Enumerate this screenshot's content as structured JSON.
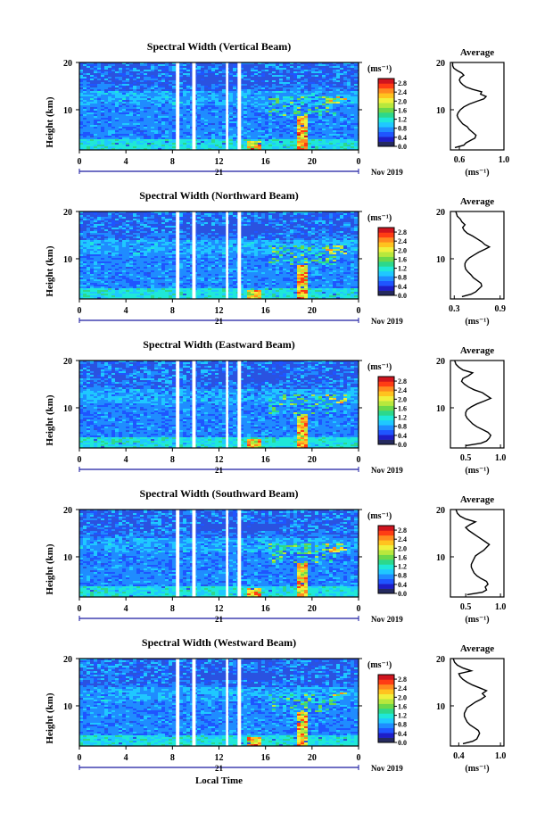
{
  "colors": {
    "scale": [
      "#252a5e",
      "#1e1ec8",
      "#1f55ff",
      "#1f8cff",
      "#1fc8ff",
      "#1fe8d8",
      "#2cd88c",
      "#6cd84a",
      "#b8e83c",
      "#f0f03c",
      "#ffc31f",
      "#ff8a1f",
      "#ff3c14",
      "#d0141e"
    ],
    "frame": "#000000",
    "axis_line": "#1a1aa0"
  },
  "shared": {
    "date_label": "Nov 2019",
    "day_label": "21",
    "xlabel": "Local Time",
    "ylabel": "Height (km)",
    "colorbar_unit": "(ms⁻¹)",
    "avg_title": "Average",
    "avg_xlabel": "(ms⁻¹)"
  },
  "chart_data": [
    {
      "type": "heatmap",
      "title": "Spectral Width (Vertical Beam)",
      "xlabel": "Local Time",
      "ylabel": "Height (km)",
      "x_ticks": [
        "0",
        "4",
        "8",
        "12",
        "16",
        "20",
        "0"
      ],
      "xlim": [
        0,
        24
      ],
      "y_ticks": [
        "20",
        "10"
      ],
      "ylim": [
        1.5,
        20
      ],
      "colorbar": {
        "unit": "(ms⁻¹)",
        "ticks": [
          "2.8",
          "2.4",
          "2.0",
          "1.6",
          "1.2",
          "0.8",
          "0.4",
          "0.0"
        ],
        "range": [
          0.0,
          3.0
        ]
      },
      "gaps_hours": [
        [
          8.3,
          8.6
        ],
        [
          9.7,
          10.0
        ],
        [
          12.6,
          12.8
        ],
        [
          13.6,
          13.9
        ]
      ],
      "average_profile": {
        "title": "Average",
        "xlabel": "(ms⁻¹)",
        "x_ticks": [
          "0.6",
          "1.0"
        ],
        "xlim": [
          0.52,
          1.0
        ],
        "y_ticks": [
          "20",
          "10"
        ],
        "points": [
          [
            0.56,
            2.0
          ],
          [
            0.64,
            2.5
          ],
          [
            0.66,
            3.0
          ],
          [
            0.7,
            3.5
          ],
          [
            0.74,
            4.0
          ],
          [
            0.75,
            4.6
          ],
          [
            0.72,
            5.2
          ],
          [
            0.69,
            5.8
          ],
          [
            0.67,
            6.4
          ],
          [
            0.63,
            7.0
          ],
          [
            0.61,
            7.6
          ],
          [
            0.59,
            8.2
          ],
          [
            0.58,
            8.8
          ],
          [
            0.59,
            9.4
          ],
          [
            0.61,
            10.0
          ],
          [
            0.64,
            10.6
          ],
          [
            0.69,
            11.2
          ],
          [
            0.76,
            11.8
          ],
          [
            0.82,
            12.3
          ],
          [
            0.84,
            12.8
          ],
          [
            0.79,
            13.3
          ],
          [
            0.8,
            13.8
          ],
          [
            0.72,
            14.3
          ],
          [
            0.66,
            14.8
          ],
          [
            0.63,
            15.3
          ],
          [
            0.61,
            15.8
          ],
          [
            0.6,
            16.3
          ],
          [
            0.61,
            16.8
          ],
          [
            0.64,
            17.3
          ],
          [
            0.62,
            17.8
          ],
          [
            0.58,
            18.3
          ],
          [
            0.55,
            18.8
          ],
          [
            0.54,
            19.3
          ],
          [
            0.54,
            20.0
          ]
        ]
      }
    },
    {
      "type": "heatmap",
      "title": "Spectral Width (Northward Beam)",
      "xlabel": "Local Time",
      "ylabel": "Height (km)",
      "x_ticks": [
        "0",
        "4",
        "8",
        "12",
        "16",
        "20",
        "0"
      ],
      "xlim": [
        0,
        24
      ],
      "y_ticks": [
        "20",
        "10"
      ],
      "ylim": [
        1.5,
        20
      ],
      "colorbar": {
        "unit": "(ms⁻¹)",
        "ticks": [
          "2.8",
          "2.4",
          "2.0",
          "1.6",
          "1.2",
          "0.8",
          "0.4",
          "0.0"
        ],
        "range": [
          0.0,
          3.0
        ]
      },
      "gaps_hours": [
        [
          8.3,
          8.6
        ],
        [
          9.7,
          10.0
        ],
        [
          12.6,
          12.8
        ],
        [
          13.6,
          13.9
        ]
      ],
      "average_profile": {
        "title": "Average",
        "xlabel": "(ms⁻¹)",
        "x_ticks": [
          "0.3",
          "0.9"
        ],
        "xlim": [
          0.25,
          0.95
        ],
        "y_ticks": [
          "20",
          "10"
        ],
        "points": [
          [
            0.4,
            2.0
          ],
          [
            0.52,
            2.5
          ],
          [
            0.58,
            3.0
          ],
          [
            0.62,
            3.6
          ],
          [
            0.66,
            4.2
          ],
          [
            0.65,
            4.8
          ],
          [
            0.6,
            5.4
          ],
          [
            0.55,
            6.0
          ],
          [
            0.52,
            6.6
          ],
          [
            0.48,
            7.2
          ],
          [
            0.45,
            7.8
          ],
          [
            0.44,
            8.4
          ],
          [
            0.44,
            9.0
          ],
          [
            0.46,
            9.6
          ],
          [
            0.5,
            10.2
          ],
          [
            0.56,
            10.8
          ],
          [
            0.62,
            11.4
          ],
          [
            0.7,
            12.0
          ],
          [
            0.76,
            12.5
          ],
          [
            0.7,
            13.0
          ],
          [
            0.66,
            13.6
          ],
          [
            0.6,
            14.2
          ],
          [
            0.54,
            14.8
          ],
          [
            0.47,
            15.4
          ],
          [
            0.43,
            16.0
          ],
          [
            0.41,
            16.6
          ],
          [
            0.44,
            17.2
          ],
          [
            0.4,
            17.8
          ],
          [
            0.38,
            18.4
          ],
          [
            0.34,
            19.0
          ],
          [
            0.32,
            20.0
          ]
        ]
      }
    },
    {
      "type": "heatmap",
      "title": "Spectral Width (Eastward Beam)",
      "xlabel": "Local Time",
      "ylabel": "Height (km)",
      "x_ticks": [
        "0",
        "4",
        "8",
        "12",
        "16",
        "20",
        "0"
      ],
      "xlim": [
        0,
        24
      ],
      "y_ticks": [
        "20",
        "10"
      ],
      "ylim": [
        1.5,
        20
      ],
      "colorbar": {
        "unit": "(ms⁻¹)",
        "ticks": [
          "2.8",
          "2.4",
          "2.0",
          "1.6",
          "1.2",
          "0.8",
          "0.4",
          "0.0"
        ],
        "range": [
          0.0,
          3.0
        ]
      },
      "gaps_hours": [
        [
          8.3,
          8.6
        ],
        [
          9.7,
          10.0
        ],
        [
          12.6,
          12.8
        ],
        [
          13.6,
          13.9
        ]
      ],
      "average_profile": {
        "title": "Average",
        "xlabel": "(ms⁻¹)",
        "x_ticks": [
          "0.5",
          "1.0"
        ],
        "xlim": [
          0.28,
          1.05
        ],
        "y_ticks": [
          "20",
          "10"
        ],
        "points": [
          [
            0.5,
            2.0
          ],
          [
            0.72,
            2.5
          ],
          [
            0.8,
            3.0
          ],
          [
            0.84,
            3.6
          ],
          [
            0.86,
            4.2
          ],
          [
            0.82,
            4.8
          ],
          [
            0.74,
            5.4
          ],
          [
            0.66,
            6.0
          ],
          [
            0.6,
            6.6
          ],
          [
            0.56,
            7.2
          ],
          [
            0.52,
            7.8
          ],
          [
            0.5,
            8.4
          ],
          [
            0.5,
            9.0
          ],
          [
            0.52,
            9.6
          ],
          [
            0.58,
            10.2
          ],
          [
            0.66,
            10.8
          ],
          [
            0.76,
            11.4
          ],
          [
            0.86,
            12.0
          ],
          [
            0.8,
            12.6
          ],
          [
            0.74,
            13.2
          ],
          [
            0.62,
            13.8
          ],
          [
            0.54,
            14.4
          ],
          [
            0.48,
            15.0
          ],
          [
            0.44,
            15.6
          ],
          [
            0.46,
            16.2
          ],
          [
            0.54,
            16.8
          ],
          [
            0.6,
            17.4
          ],
          [
            0.46,
            18.0
          ],
          [
            0.4,
            18.6
          ],
          [
            0.36,
            19.2
          ],
          [
            0.34,
            20.0
          ]
        ]
      }
    },
    {
      "type": "heatmap",
      "title": "Spectral Width (Southward Beam)",
      "xlabel": "Local Time",
      "ylabel": "Height (km)",
      "x_ticks": [
        "0",
        "4",
        "8",
        "12",
        "16",
        "20",
        "0"
      ],
      "xlim": [
        0,
        24
      ],
      "y_ticks": [
        "20",
        "10"
      ],
      "ylim": [
        1.5,
        20
      ],
      "colorbar": {
        "unit": "(ms⁻¹)",
        "ticks": [
          "2.8",
          "2.4",
          "2.0",
          "1.6",
          "1.2",
          "0.8",
          "0.4",
          "0.0"
        ],
        "range": [
          0.0,
          3.0
        ]
      },
      "gaps_hours": [
        [
          8.3,
          8.6
        ],
        [
          9.7,
          10.0
        ],
        [
          12.6,
          12.8
        ],
        [
          13.6,
          13.9
        ]
      ],
      "average_profile": {
        "title": "Average",
        "xlabel": "(ms⁻¹)",
        "x_ticks": [
          "0.5",
          "1.0"
        ],
        "xlim": [
          0.28,
          1.05
        ],
        "y_ticks": [
          "20",
          "10"
        ],
        "points": [
          [
            0.52,
            2.0
          ],
          [
            0.74,
            2.5
          ],
          [
            0.8,
            3.0
          ],
          [
            0.78,
            3.6
          ],
          [
            0.82,
            4.2
          ],
          [
            0.8,
            4.8
          ],
          [
            0.72,
            5.4
          ],
          [
            0.66,
            6.0
          ],
          [
            0.62,
            6.6
          ],
          [
            0.6,
            7.2
          ],
          [
            0.58,
            7.8
          ],
          [
            0.58,
            8.4
          ],
          [
            0.6,
            9.0
          ],
          [
            0.62,
            9.6
          ],
          [
            0.64,
            10.2
          ],
          [
            0.7,
            10.8
          ],
          [
            0.76,
            11.4
          ],
          [
            0.8,
            12.0
          ],
          [
            0.84,
            12.6
          ],
          [
            0.78,
            13.2
          ],
          [
            0.72,
            13.8
          ],
          [
            0.66,
            14.4
          ],
          [
            0.6,
            15.0
          ],
          [
            0.54,
            15.6
          ],
          [
            0.5,
            16.2
          ],
          [
            0.56,
            16.8
          ],
          [
            0.64,
            17.4
          ],
          [
            0.5,
            18.0
          ],
          [
            0.42,
            18.6
          ],
          [
            0.38,
            19.2
          ],
          [
            0.36,
            20.0
          ]
        ]
      }
    },
    {
      "type": "heatmap",
      "title": "Spectral Width (Westward Beam)",
      "xlabel": "Local Time",
      "ylabel": "Height (km)",
      "x_ticks": [
        "0",
        "4",
        "8",
        "12",
        "16",
        "20",
        "0"
      ],
      "xlim": [
        0,
        24
      ],
      "y_ticks": [
        "20",
        "10"
      ],
      "ylim": [
        1.5,
        20
      ],
      "colorbar": {
        "unit": "(ms⁻¹)",
        "ticks": [
          "2.8",
          "2.4",
          "2.0",
          "1.6",
          "1.2",
          "0.8",
          "0.4",
          "0.0"
        ],
        "range": [
          0.0,
          3.0
        ]
      },
      "gaps_hours": [
        [
          8.3,
          8.6
        ],
        [
          9.7,
          10.0
        ],
        [
          12.6,
          12.8
        ],
        [
          13.6,
          13.9
        ]
      ],
      "average_profile": {
        "title": "Average",
        "xlabel": "(ms⁻¹)",
        "x_ticks": [
          "0.4",
          "1.0"
        ],
        "xlim": [
          0.28,
          1.05
        ],
        "y_ticks": [
          "20",
          "10"
        ],
        "points": [
          [
            0.46,
            2.0
          ],
          [
            0.6,
            2.5
          ],
          [
            0.66,
            3.0
          ],
          [
            0.68,
            3.6
          ],
          [
            0.7,
            4.2
          ],
          [
            0.68,
            4.8
          ],
          [
            0.62,
            5.4
          ],
          [
            0.56,
            6.0
          ],
          [
            0.52,
            6.6
          ],
          [
            0.5,
            7.2
          ],
          [
            0.48,
            7.8
          ],
          [
            0.48,
            8.4
          ],
          [
            0.5,
            9.0
          ],
          [
            0.52,
            9.6
          ],
          [
            0.58,
            10.2
          ],
          [
            0.64,
            10.8
          ],
          [
            0.72,
            11.4
          ],
          [
            0.78,
            12.0
          ],
          [
            0.74,
            12.6
          ],
          [
            0.8,
            13.2
          ],
          [
            0.7,
            13.8
          ],
          [
            0.6,
            14.4
          ],
          [
            0.52,
            15.0
          ],
          [
            0.46,
            15.6
          ],
          [
            0.42,
            16.2
          ],
          [
            0.4,
            16.8
          ],
          [
            0.58,
            17.4
          ],
          [
            0.46,
            18.0
          ],
          [
            0.38,
            18.6
          ],
          [
            0.34,
            19.2
          ],
          [
            0.32,
            20.0
          ]
        ]
      }
    }
  ]
}
